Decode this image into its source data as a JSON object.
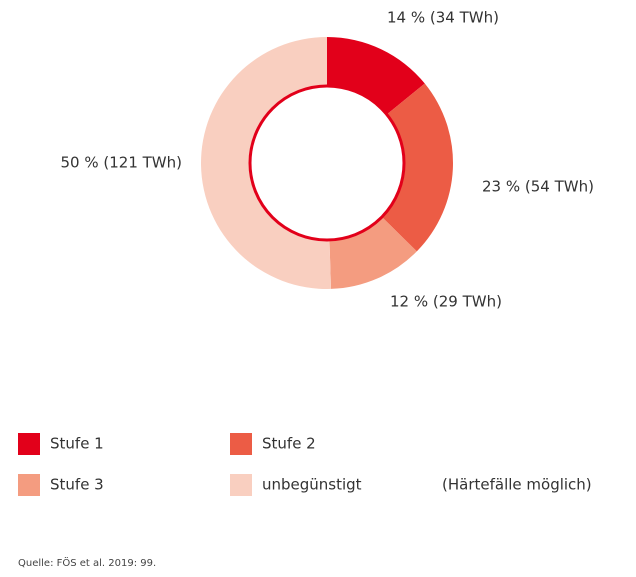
{
  "chart_data": {
    "type": "pie",
    "categories": [
      "Stufe 1",
      "Stufe 2",
      "Stufe 3",
      "unbegünstigt"
    ],
    "values": [
      14,
      23,
      12,
      50
    ],
    "value_labels": [
      "14 % (34 TWh)",
      "23 % (54 TWh)",
      "12 % (29 TWh)",
      "50 % (121 TWh)"
    ],
    "colors": [
      "#e2001a",
      "#ec5c45",
      "#f49c80",
      "#f9cfc0"
    ],
    "annotation": "(Härtefälle möglich)",
    "source": "Quelle: FÖS et al. 2019: 99."
  }
}
